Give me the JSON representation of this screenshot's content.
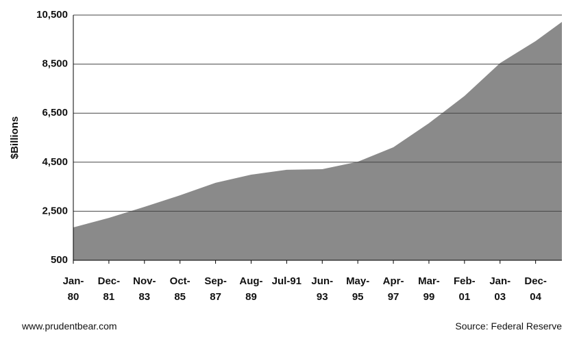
{
  "chart_data": {
    "type": "area",
    "ylabel": "$Billions",
    "source": "Source: Federal Reserve",
    "website": "www.prudentbear.com",
    "color": "#8a8a8a",
    "x": [
      0,
      23,
      46,
      69,
      92,
      115,
      138,
      161,
      184,
      207,
      230,
      253,
      276,
      299,
      316
    ],
    "values": [
      1840,
      2230,
      2680,
      3150,
      3660,
      3990,
      4190,
      4215,
      4520,
      5110,
      6090,
      7200,
      8540,
      9440,
      10220
    ],
    "xlim": [
      0,
      316
    ],
    "xticks": [
      {
        "value": 0,
        "label": "Jan-80"
      },
      {
        "value": 23,
        "label": "Dec-81"
      },
      {
        "value": 46,
        "label": "Nov-83"
      },
      {
        "value": 69,
        "label": "Oct-85"
      },
      {
        "value": 92,
        "label": "Sep-87"
      },
      {
        "value": 115,
        "label": "Aug-89"
      },
      {
        "value": 138,
        "label": "Jul-91"
      },
      {
        "value": 161,
        "label": "Jun-93"
      },
      {
        "value": 184,
        "label": "May-95"
      },
      {
        "value": 207,
        "label": "Apr-97"
      },
      {
        "value": 230,
        "label": "Mar-99"
      },
      {
        "value": 253,
        "label": "Feb-01"
      },
      {
        "value": 276,
        "label": "Jan-03"
      },
      {
        "value": 299,
        "label": "Dec-04"
      }
    ],
    "ylim": [
      500,
      10500
    ],
    "yticks": [
      500,
      {
        "value": 2500,
        "label": "2,500"
      },
      {
        "value": 4500,
        "label": "4,500"
      },
      {
        "value": 6500,
        "label": "6,500"
      },
      {
        "value": 8500,
        "label": "8,500"
      },
      {
        "value": 10500,
        "label": "10,500"
      }
    ],
    "grid": true
  }
}
